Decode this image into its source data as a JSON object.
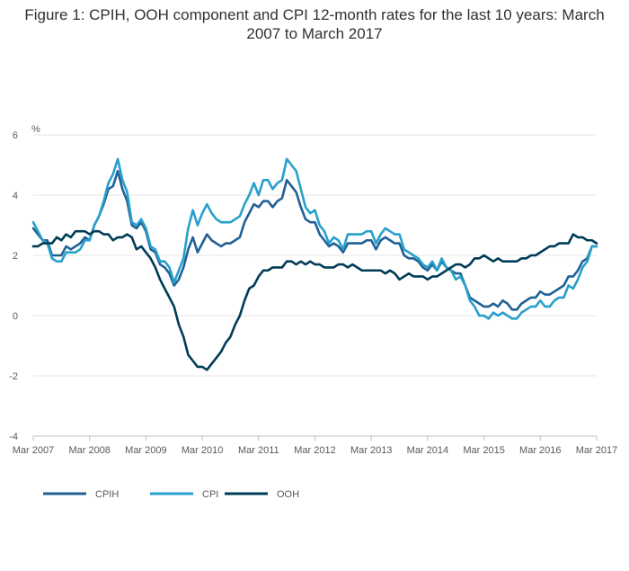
{
  "chart_data": {
    "type": "line",
    "title": "Figure 1: CPIH, OOH component and CPI 12-month rates for the last 10 years: March 2007 to March 2017",
    "ylabel": "%",
    "ylim": [
      -4,
      6
    ],
    "yticks": [
      "6",
      "4",
      "2",
      "0",
      "-2",
      "-4"
    ],
    "xticks": [
      "Mar 2007",
      "Mar 2008",
      "Mar 2009",
      "Mar 2010",
      "Mar 2011",
      "Mar 2012",
      "Mar 2013",
      "Mar 2014",
      "Mar 2015",
      "Mar 2016",
      "Mar 2017"
    ],
    "x_start": "Mar 2007",
    "x_end": "Mar 2017",
    "grid": true,
    "legend_position": "bottom-left",
    "series": [
      {
        "name": "CPIH",
        "color": "#206095",
        "values": [
          2.9,
          2.7,
          2.5,
          2.5,
          2.0,
          2.0,
          2.0,
          2.3,
          2.2,
          2.3,
          2.4,
          2.6,
          2.5,
          3.0,
          3.3,
          3.7,
          4.2,
          4.3,
          4.8,
          4.2,
          3.8,
          3.0,
          2.9,
          3.1,
          2.8,
          2.2,
          2.1,
          1.7,
          1.6,
          1.4,
          1.0,
          1.2,
          1.6,
          2.2,
          2.6,
          2.1,
          2.4,
          2.7,
          2.5,
          2.4,
          2.3,
          2.4,
          2.4,
          2.5,
          2.6,
          3.1,
          3.4,
          3.7,
          3.6,
          3.8,
          3.8,
          3.6,
          3.8,
          3.9,
          4.5,
          4.3,
          4.1,
          3.6,
          3.2,
          3.1,
          3.1,
          2.7,
          2.5,
          2.3,
          2.4,
          2.3,
          2.1,
          2.4,
          2.4,
          2.4,
          2.4,
          2.5,
          2.5,
          2.2,
          2.5,
          2.6,
          2.5,
          2.4,
          2.4,
          2.0,
          1.9,
          1.9,
          1.8,
          1.6,
          1.5,
          1.7,
          1.5,
          1.8,
          1.6,
          1.5,
          1.4,
          1.4,
          1.0,
          0.6,
          0.5,
          0.4,
          0.3,
          0.3,
          0.4,
          0.3,
          0.5,
          0.4,
          0.2,
          0.2,
          0.4,
          0.5,
          0.6,
          0.6,
          0.8,
          0.7,
          0.7,
          0.8,
          0.9,
          1.0,
          1.3,
          1.3,
          1.5,
          1.8,
          1.9,
          2.3,
          2.3
        ]
      },
      {
        "name": "CPI",
        "color": "#27a0cc",
        "values": [
          3.1,
          2.8,
          2.5,
          2.4,
          1.9,
          1.8,
          1.8,
          2.1,
          2.1,
          2.1,
          2.2,
          2.5,
          2.5,
          3.0,
          3.3,
          3.8,
          4.4,
          4.7,
          5.2,
          4.5,
          4.1,
          3.1,
          3.0,
          3.2,
          2.9,
          2.3,
          2.2,
          1.8,
          1.8,
          1.6,
          1.1,
          1.5,
          1.9,
          2.9,
          3.5,
          3.0,
          3.4,
          3.7,
          3.4,
          3.2,
          3.1,
          3.1,
          3.1,
          3.2,
          3.3,
          3.7,
          4.0,
          4.4,
          4.0,
          4.5,
          4.5,
          4.2,
          4.4,
          4.5,
          5.2,
          5.0,
          4.8,
          4.2,
          3.6,
          3.4,
          3.5,
          3.0,
          2.8,
          2.4,
          2.6,
          2.5,
          2.2,
          2.7,
          2.7,
          2.7,
          2.7,
          2.8,
          2.8,
          2.4,
          2.7,
          2.9,
          2.8,
          2.7,
          2.7,
          2.2,
          2.1,
          2.0,
          1.9,
          1.7,
          1.6,
          1.8,
          1.5,
          1.9,
          1.6,
          1.5,
          1.2,
          1.3,
          1.0,
          0.5,
          0.3,
          0.0,
          0.0,
          -0.1,
          0.1,
          0.0,
          0.1,
          0.0,
          -0.1,
          -0.1,
          0.1,
          0.2,
          0.3,
          0.3,
          0.5,
          0.3,
          0.3,
          0.5,
          0.6,
          0.6,
          1.0,
          0.9,
          1.2,
          1.6,
          1.8,
          2.3,
          2.3
        ]
      },
      {
        "name": "OOH",
        "color": "#003c57",
        "values": [
          2.3,
          2.3,
          2.4,
          2.4,
          2.4,
          2.6,
          2.5,
          2.7,
          2.6,
          2.8,
          2.8,
          2.8,
          2.7,
          2.8,
          2.8,
          2.7,
          2.7,
          2.5,
          2.6,
          2.6,
          2.7,
          2.6,
          2.2,
          2.3,
          2.1,
          1.9,
          1.6,
          1.2,
          0.9,
          0.6,
          0.3,
          -0.3,
          -0.7,
          -1.3,
          -1.5,
          -1.7,
          -1.7,
          -1.8,
          -1.6,
          -1.4,
          -1.2,
          -0.9,
          -0.7,
          -0.3,
          0.0,
          0.5,
          0.9,
          1.0,
          1.3,
          1.5,
          1.5,
          1.6,
          1.6,
          1.6,
          1.8,
          1.8,
          1.7,
          1.8,
          1.7,
          1.8,
          1.7,
          1.7,
          1.6,
          1.6,
          1.6,
          1.7,
          1.7,
          1.6,
          1.7,
          1.6,
          1.5,
          1.5,
          1.5,
          1.5,
          1.5,
          1.4,
          1.5,
          1.4,
          1.2,
          1.3,
          1.4,
          1.3,
          1.3,
          1.3,
          1.2,
          1.3,
          1.3,
          1.4,
          1.5,
          1.6,
          1.7,
          1.7,
          1.6,
          1.7,
          1.9,
          1.9,
          2.0,
          1.9,
          1.8,
          1.9,
          1.8,
          1.8,
          1.8,
          1.8,
          1.9,
          1.9,
          2.0,
          2.0,
          2.1,
          2.2,
          2.3,
          2.3,
          2.4,
          2.4,
          2.4,
          2.7,
          2.6,
          2.6,
          2.5,
          2.5,
          2.4
        ]
      }
    ]
  }
}
